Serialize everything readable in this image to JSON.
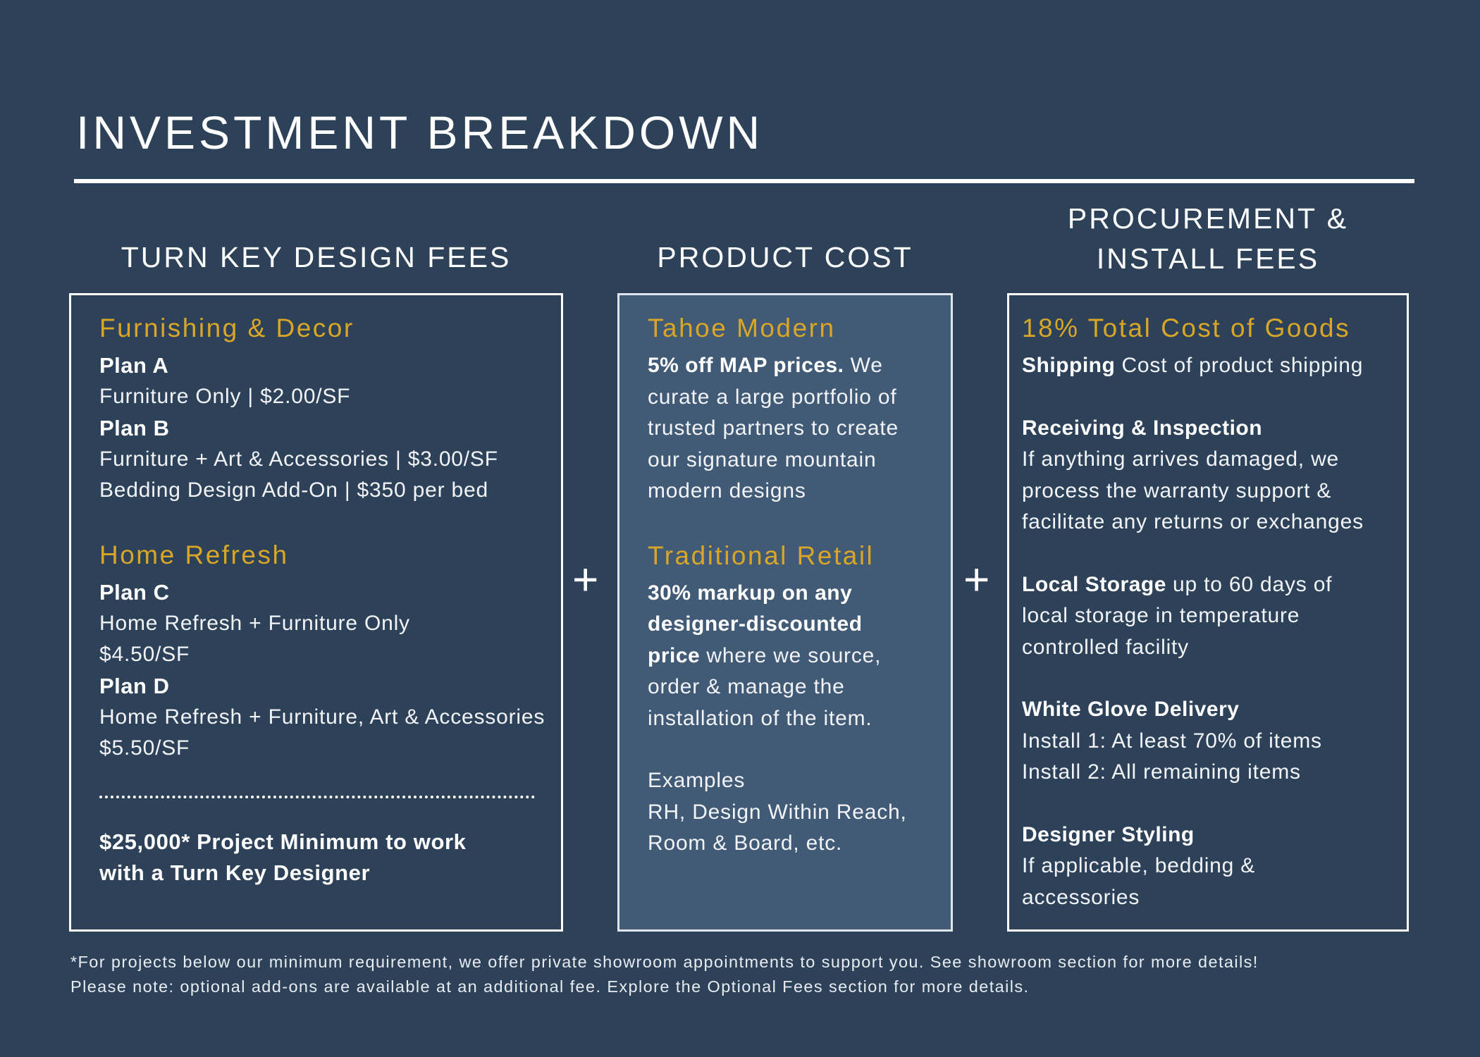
{
  "title": "INVESTMENT BREAKDOWN",
  "columns": {
    "design_fees": {
      "heading": "TURN KEY DESIGN FEES",
      "sections": [
        {
          "title": "Furnishing & Decor",
          "plans": [
            {
              "name": "Plan A",
              "lines": [
                "Furniture Only | $2.00/SF"
              ]
            },
            {
              "name": "Plan B",
              "lines": [
                "Furniture + Art & Accessories | $3.00/SF",
                "Bedding Design Add-On | $350 per bed"
              ]
            }
          ]
        },
        {
          "title": "Home Refresh",
          "plans": [
            {
              "name": "Plan C",
              "lines": [
                "Home Refresh + Furniture Only",
                "$4.50/SF"
              ]
            },
            {
              "name": "Plan D",
              "lines": [
                "Home Refresh + Furniture, Art & Accessories",
                "$5.50/SF"
              ]
            }
          ]
        }
      ],
      "minimum_line1": "$25,000* Project Minimum to work",
      "minimum_line2": "with a Turn Key Designer"
    },
    "product_cost": {
      "heading": "PRODUCT COST",
      "tahoe": {
        "title": "Tahoe Modern",
        "bold": "5% off MAP prices.",
        "text_line1": " We",
        "text_lines": [
          "curate a large portfolio of",
          "trusted partners to create",
          "our signature mountain",
          "modern designs"
        ]
      },
      "retail": {
        "title": "Traditional Retail",
        "bold_lines": [
          "30% markup on any",
          "designer-discounted",
          "price"
        ],
        "text_line3": " where we source,",
        "text_lines": [
          "order & manage the",
          "installation of the item."
        ],
        "examples_label": "Examples",
        "examples_lines": [
          "RH, Design Within Reach,",
          "Room & Board, etc."
        ]
      }
    },
    "procurement": {
      "heading_line1": "PROCUREMENT &",
      "heading_line2": "INSTALL FEES",
      "title": "18% Total Cost of Goods",
      "shipping": {
        "bold": "Shipping",
        "text": " Cost of product shipping"
      },
      "receiving": {
        "bold": "Receiving & Inspection",
        "lines": [
          "If anything arrives damaged, we",
          "process the warranty support &",
          "facilitate any returns or exchanges"
        ]
      },
      "storage": {
        "bold": "Local Storage",
        "text_line1": " up to 60 days of",
        "lines": [
          "local storage in temperature",
          "controlled facility"
        ]
      },
      "delivery": {
        "bold": "White Glove Delivery",
        "lines": [
          "Install 1: At least 70% of items",
          "Install 2: All remaining items"
        ]
      },
      "styling": {
        "bold": "Designer Styling",
        "lines": [
          "If applicable, bedding &",
          "accessories"
        ]
      }
    }
  },
  "operators": [
    "+",
    "+"
  ],
  "footnote_line1": "*For projects below our minimum requirement, we offer private showroom appointments to support you. See showroom section for more details!",
  "footnote_line2": "Please note: optional add-ons are available at an additional fee. Explore the Optional Fees section for more details.",
  "colors": {
    "background": "#2d4259",
    "accent": "#d9a627",
    "panel_highlight": "#415a76"
  }
}
